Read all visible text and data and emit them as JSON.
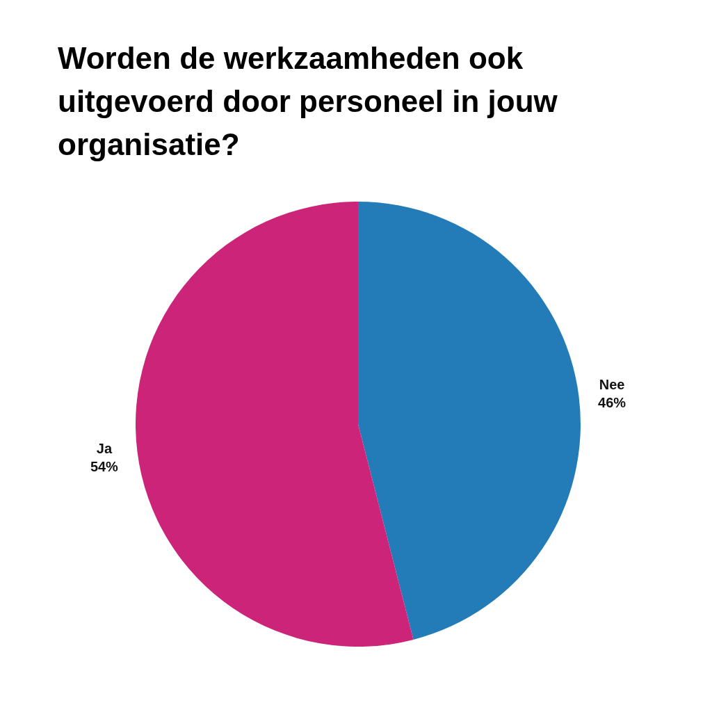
{
  "chart_data": {
    "type": "pie",
    "title": "Worden de werkzaamheden ook uitgevoerd door personeel in jouw organisatie?",
    "categories": [
      "Nee",
      "Ja"
    ],
    "values": [
      46,
      54
    ],
    "colors": [
      "#237bb8",
      "#cc2478"
    ],
    "value_labels": [
      "46%",
      "54%"
    ]
  }
}
